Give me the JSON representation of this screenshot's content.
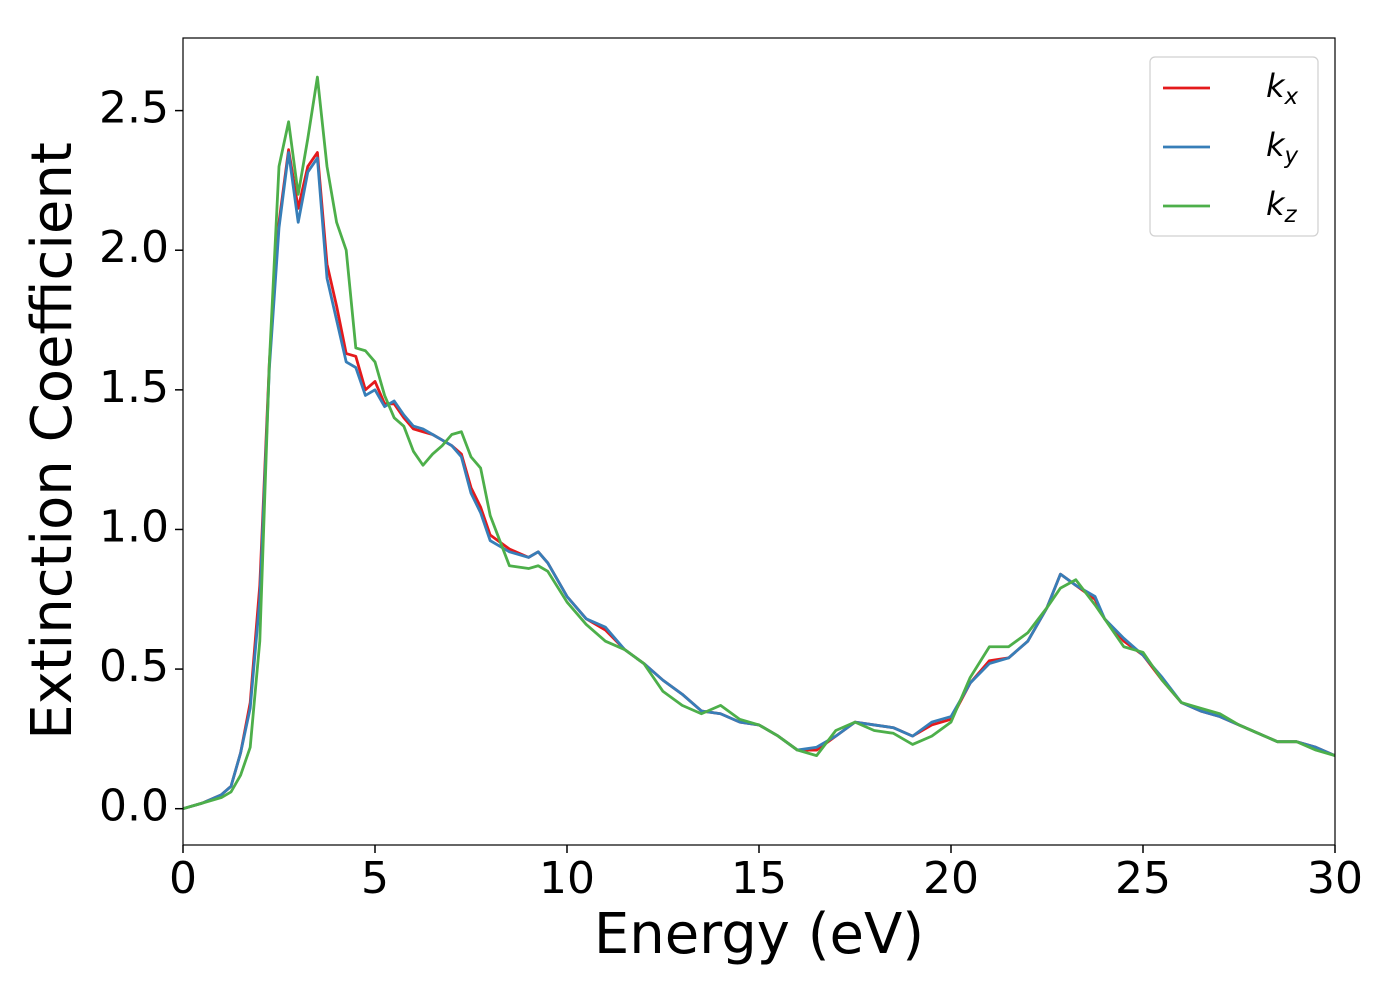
{
  "chart_data": {
    "type": "line",
    "xlabel": "Energy (eV)",
    "ylabel": "Extinction Coefficient",
    "x": [
      0,
      0.5,
      1,
      1.25,
      1.5,
      1.75,
      2,
      2.25,
      2.5,
      2.75,
      3,
      3.25,
      3.5,
      3.75,
      4,
      4.25,
      4.5,
      4.75,
      5,
      5.25,
      5.5,
      5.75,
      6,
      6.25,
      6.5,
      6.75,
      7,
      7.25,
      7.5,
      7.75,
      8,
      8.5,
      9,
      9.25,
      9.5,
      10,
      10.5,
      11,
      11.5,
      12,
      12.5,
      13,
      13.5,
      14,
      14.5,
      15,
      15.5,
      16,
      16.5,
      17,
      17.5,
      18,
      18.5,
      19,
      19.5,
      20,
      20.5,
      21,
      21.5,
      22,
      22.5,
      22.85,
      23.25,
      23.75,
      24,
      24.5,
      25,
      25.5,
      26,
      26.5,
      27,
      27.5,
      28,
      28.5,
      29,
      29.5,
      30
    ],
    "series": [
      {
        "name": "kx",
        "color": "#e41a1c",
        "values": [
          0,
          0.02,
          0.05,
          0.08,
          0.2,
          0.38,
          0.8,
          1.6,
          2.1,
          2.36,
          2.15,
          2.3,
          2.35,
          1.95,
          1.8,
          1.63,
          1.62,
          1.5,
          1.53,
          1.45,
          1.45,
          1.4,
          1.36,
          1.35,
          1.34,
          1.32,
          1.3,
          1.27,
          1.15,
          1.08,
          0.98,
          0.93,
          0.9,
          0.92,
          0.88,
          0.76,
          0.68,
          0.64,
          0.57,
          0.52,
          0.46,
          0.41,
          0.35,
          0.34,
          0.31,
          0.3,
          0.26,
          0.21,
          0.21,
          0.26,
          0.31,
          0.3,
          0.29,
          0.26,
          0.3,
          0.32,
          0.45,
          0.53,
          0.54,
          0.6,
          0.72,
          0.84,
          0.8,
          0.75,
          0.68,
          0.6,
          0.55,
          0.46,
          0.38,
          0.35,
          0.33,
          0.3,
          0.27,
          0.24,
          0.24,
          0.22,
          0.19
        ]
      },
      {
        "name": "ky",
        "color": "#377eb8",
        "values": [
          0,
          0.02,
          0.05,
          0.08,
          0.2,
          0.36,
          0.75,
          1.58,
          2.08,
          2.35,
          2.1,
          2.28,
          2.33,
          1.9,
          1.75,
          1.6,
          1.58,
          1.48,
          1.5,
          1.44,
          1.46,
          1.41,
          1.37,
          1.36,
          1.34,
          1.32,
          1.3,
          1.26,
          1.13,
          1.06,
          0.96,
          0.92,
          0.9,
          0.92,
          0.88,
          0.76,
          0.68,
          0.65,
          0.57,
          0.52,
          0.46,
          0.41,
          0.35,
          0.34,
          0.31,
          0.3,
          0.26,
          0.21,
          0.22,
          0.26,
          0.31,
          0.3,
          0.29,
          0.26,
          0.31,
          0.33,
          0.45,
          0.52,
          0.54,
          0.6,
          0.72,
          0.84,
          0.8,
          0.76,
          0.68,
          0.61,
          0.55,
          0.47,
          0.38,
          0.35,
          0.33,
          0.3,
          0.27,
          0.24,
          0.24,
          0.22,
          0.19
        ]
      },
      {
        "name": "kz",
        "color": "#4daf4a",
        "values": [
          0,
          0.02,
          0.04,
          0.06,
          0.12,
          0.22,
          0.6,
          1.6,
          2.3,
          2.46,
          2.2,
          2.4,
          2.62,
          2.3,
          2.1,
          2.0,
          1.65,
          1.64,
          1.6,
          1.48,
          1.4,
          1.37,
          1.28,
          1.23,
          1.27,
          1.3,
          1.34,
          1.35,
          1.26,
          1.22,
          1.05,
          0.87,
          0.86,
          0.87,
          0.85,
          0.74,
          0.66,
          0.6,
          0.57,
          0.52,
          0.42,
          0.37,
          0.34,
          0.37,
          0.32,
          0.3,
          0.26,
          0.21,
          0.19,
          0.28,
          0.31,
          0.28,
          0.27,
          0.23,
          0.26,
          0.31,
          0.47,
          0.58,
          0.58,
          0.63,
          0.72,
          0.79,
          0.82,
          0.73,
          0.68,
          0.58,
          0.56,
          0.46,
          0.38,
          0.36,
          0.34,
          0.3,
          0.27,
          0.24,
          0.24,
          0.21,
          0.19
        ]
      }
    ],
    "xlim": [
      0,
      30
    ],
    "ylim": [
      -0.13,
      2.76
    ],
    "xticks": [
      0,
      5,
      10,
      15,
      20,
      25,
      30
    ],
    "yticks": [
      {
        "value": 0,
        "label": "0.0"
      },
      {
        "value": 0.5,
        "label": "0.5"
      },
      {
        "value": 1,
        "label": "1.0"
      },
      {
        "value": 1.5,
        "label": "1.5"
      },
      {
        "value": 2,
        "label": "2.0"
      },
      {
        "value": 2.5,
        "label": "2.5"
      }
    ],
    "grid": false,
    "legend": "upper right"
  }
}
